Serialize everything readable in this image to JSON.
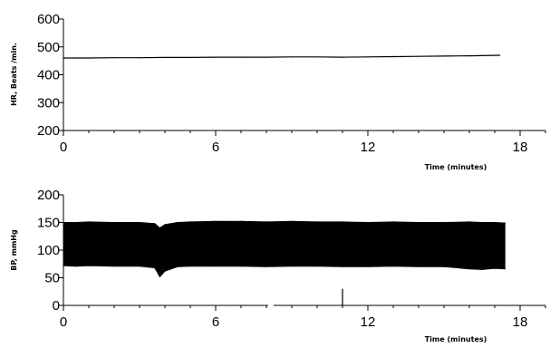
{
  "chart_data": [
    {
      "type": "line",
      "ylabel": "HR, Beats /min.",
      "xlabel": "Time (minutes)",
      "xlim": [
        0,
        19
      ],
      "ylim": [
        200,
        600
      ],
      "x_ticks": [
        "0",
        "6",
        "12",
        "18"
      ],
      "y_ticks": [
        "200",
        "300",
        "400",
        "500",
        "600"
      ],
      "grid": false,
      "series": [
        {
          "x": [
            0,
            1,
            2,
            3,
            4,
            5,
            6,
            7,
            8,
            9,
            10,
            11,
            12,
            13,
            14,
            15,
            16,
            17.2
          ],
          "y": [
            460,
            460,
            461,
            461,
            462,
            462,
            463,
            463,
            463,
            464,
            464,
            463,
            464,
            465,
            466,
            467,
            468,
            470
          ]
        }
      ]
    },
    {
      "type": "area",
      "ylabel": "BP, mmHg",
      "xlabel": "Time (minutes)",
      "xlim": [
        0,
        19
      ],
      "ylim": [
        0,
        200
      ],
      "x_ticks": [
        "0",
        "6",
        "12",
        "18"
      ],
      "y_ticks": [
        "0",
        "50",
        "100",
        "150",
        "200"
      ],
      "grid": false,
      "series": [
        {
          "x": [
            0,
            0.5,
            1,
            2,
            3,
            3.6,
            3.8,
            4,
            4.5,
            5,
            6,
            7,
            8,
            9,
            10,
            11,
            12,
            13,
            14,
            15,
            16,
            16.5,
            17,
            17.4
          ],
          "upper": [
            150,
            150,
            151,
            150,
            150,
            148,
            140,
            146,
            150,
            151,
            152,
            152,
            151,
            152,
            151,
            151,
            150,
            151,
            150,
            150,
            151,
            150,
            150,
            149
          ],
          "lower": [
            72,
            71,
            72,
            71,
            71,
            68,
            52,
            62,
            70,
            71,
            71,
            71,
            70,
            71,
            71,
            70,
            70,
            71,
            70,
            70,
            66,
            65,
            67,
            66
          ]
        }
      ],
      "annotations": [
        {
          "x": 11,
          "y": 30
        }
      ]
    }
  ]
}
